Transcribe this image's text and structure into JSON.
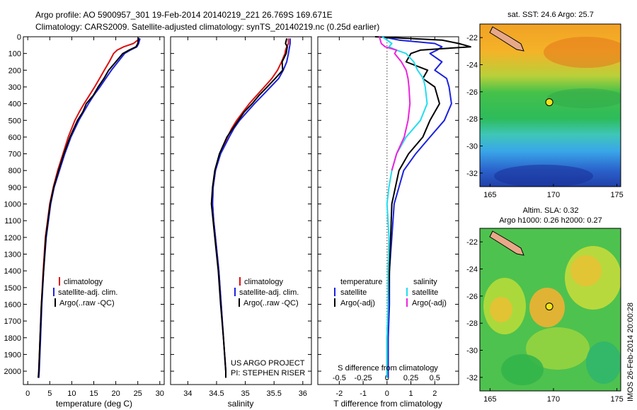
{
  "header": {
    "line1": "Argo profile: AO 5900957_301 19-Feb-2014 20140219_221 26.769S 169.671E",
    "line2": "Climatology: CARS2009. Satellite-adjusted climatology: synTS_20140219.nc (0.25d earlier)"
  },
  "colors": {
    "climatology": "#dd1111",
    "satellite": "#1c22dd",
    "argo": "#000000",
    "salinity_sat": "#22ddee",
    "salinity_argo": "#ee22dd"
  },
  "chart_data": [
    {
      "type": "line",
      "id": "temperature",
      "xlabel": "temperature (deg C)",
      "ylabel": "",
      "xlim": [
        -1,
        31
      ],
      "ylim": [
        2080,
        0
      ],
      "xticks": [
        "0",
        "5",
        "10",
        "15",
        "20",
        "25",
        "30"
      ],
      "yticks": [
        "0",
        "100",
        "200",
        "300",
        "400",
        "500",
        "600",
        "700",
        "800",
        "900",
        "1000",
        "1100",
        "1200",
        "1300",
        "1400",
        "1500",
        "1600",
        "1700",
        "1800",
        "1900",
        "2000"
      ],
      "legend": [
        "climatology",
        "satellite-adj. clim.",
        "Argo(..raw -QC)"
      ],
      "series": [
        {
          "name": "climatology",
          "color": "#dd1111",
          "depth": [
            20,
            40,
            60,
            80,
            100,
            150,
            200,
            250,
            300,
            350,
            400,
            450,
            500,
            600,
            700,
            800,
            900,
            1000,
            1200,
            1400,
            1600,
            1800,
            2000,
            2040
          ],
          "values": [
            25.0,
            24.0,
            21.8,
            20.3,
            19.5,
            18.5,
            17.4,
            16.3,
            15.2,
            14.0,
            12.8,
            11.7,
            10.7,
            9.2,
            8.0,
            6.8,
            5.8,
            5.0,
            4.0,
            3.5,
            3.1,
            2.8,
            2.5,
            2.4
          ]
        },
        {
          "name": "satellite-adj. clim.",
          "color": "#1c22dd",
          "depth": [
            10,
            40,
            60,
            80,
            100,
            150,
            200,
            250,
            300,
            350,
            400,
            450,
            500,
            600,
            700,
            800,
            900,
            1000,
            1200,
            1400,
            1600,
            1800,
            2000,
            2040
          ],
          "values": [
            25.5,
            25.2,
            24.8,
            23.3,
            22.0,
            20.5,
            19.0,
            17.7,
            16.4,
            15.0,
            13.8,
            12.7,
            11.6,
            9.8,
            8.4,
            7.2,
            6.0,
            5.2,
            4.2,
            3.6,
            3.2,
            2.9,
            2.6,
            2.5
          ]
        },
        {
          "name": "Argo(..raw -QC)",
          "color": "#000000",
          "depth": [
            5,
            40,
            60,
            80,
            100,
            150,
            200,
            250,
            300,
            350,
            400,
            450,
            500,
            600,
            700,
            800,
            900,
            1000,
            1200,
            1400,
            1600,
            1800,
            2000,
            2040
          ],
          "values": [
            25.2,
            25.0,
            24.6,
            23.0,
            21.6,
            20.0,
            18.4,
            17.3,
            16.0,
            14.9,
            13.3,
            12.5,
            11.3,
            9.6,
            8.2,
            7.0,
            5.9,
            5.1,
            4.1,
            3.6,
            3.1,
            2.8,
            2.5,
            2.4
          ]
        }
      ]
    },
    {
      "type": "line",
      "id": "salinity",
      "xlabel": "salinity",
      "xlim": [
        33.7,
        36.15
      ],
      "ylim": [
        2080,
        0
      ],
      "xticks": [
        "34",
        "34.5",
        "35",
        "35.5",
        "36"
      ],
      "legend": [
        "climatology",
        "satellite-adj. clim.",
        "Argo(..raw -QC)"
      ],
      "annotation": [
        "US ARGO PROJECT",
        "PI: STEPHEN RISER"
      ],
      "series": [
        {
          "name": "climatology",
          "color": "#dd1111",
          "depth": [
            10,
            40,
            60,
            80,
            100,
            150,
            200,
            250,
            300,
            350,
            400,
            450,
            500,
            550,
            600,
            700,
            800,
            900,
            1000,
            1100,
            1200,
            1400,
            1600,
            1800,
            2000,
            2040
          ],
          "values": [
            35.75,
            35.75,
            35.72,
            35.7,
            35.69,
            35.63,
            35.56,
            35.46,
            35.33,
            35.2,
            35.07,
            34.96,
            34.85,
            34.76,
            34.69,
            34.56,
            34.48,
            34.44,
            34.43,
            34.45,
            34.48,
            34.54,
            34.58,
            34.62,
            34.66,
            34.66
          ]
        },
        {
          "name": "satellite-adj. clim.",
          "color": "#1c22dd",
          "depth": [
            10,
            40,
            60,
            80,
            100,
            150,
            200,
            250,
            300,
            350,
            400,
            450,
            500,
            550,
            600,
            700,
            800,
            900,
            1000,
            1100,
            1200,
            1400,
            1600,
            1800,
            2000,
            2040
          ],
          "values": [
            35.78,
            35.78,
            35.77,
            35.76,
            35.75,
            35.72,
            35.66,
            35.58,
            35.44,
            35.3,
            35.16,
            35.03,
            34.9,
            34.8,
            34.72,
            34.57,
            34.48,
            34.44,
            34.43,
            34.45,
            34.48,
            34.54,
            34.58,
            34.62,
            34.66,
            34.66
          ]
        },
        {
          "name": "Argo(..raw -QC)",
          "color": "#000000",
          "depth": [
            10,
            40,
            60,
            80,
            100,
            150,
            200,
            250,
            300,
            350,
            400,
            450,
            500,
            550,
            600,
            700,
            800,
            900,
            1000,
            1100,
            1200,
            1400,
            1600,
            1800,
            2000,
            2040
          ],
          "values": [
            35.72,
            35.7,
            35.73,
            35.72,
            35.71,
            35.64,
            35.65,
            35.52,
            35.38,
            35.24,
            35.12,
            34.98,
            34.88,
            34.78,
            34.68,
            34.55,
            34.47,
            34.43,
            34.41,
            34.44,
            34.47,
            34.53,
            34.57,
            34.62,
            34.66,
            34.66
          ]
        }
      ]
    },
    {
      "type": "line",
      "id": "difference",
      "xlabel": "T difference from climatology",
      "xlabel2": "S difference from climatology",
      "xlim": [
        -2.9,
        3.0
      ],
      "ylim": [
        2080,
        0
      ],
      "xticks": [
        "-2",
        "-1",
        "0",
        "1",
        "2"
      ],
      "xticks_s": [
        "-0.5",
        "-0.25",
        "0",
        "0.25",
        "0.5"
      ],
      "legend_headers": [
        "temperature",
        "salinity"
      ],
      "legend": [
        "satellite",
        "Argo(-adj)",
        "satellite",
        "Argo(-adj)"
      ],
      "series": [
        {
          "name": "temperature satellite",
          "color": "#1c22dd",
          "depth": [
            0,
            20,
            40,
            60,
            80,
            100,
            150,
            200,
            250,
            300,
            400,
            500,
            600,
            700,
            800,
            1000,
            1200,
            1400,
            1600,
            1800,
            2000,
            2040
          ],
          "values": [
            -0.2,
            0.5,
            2.0,
            2.3,
            2.1,
            1.8,
            2.3,
            2.0,
            2.5,
            2.6,
            2.7,
            2.4,
            1.8,
            1.2,
            0.7,
            0.3,
            0.2,
            0.1,
            0.1,
            0.05,
            0.05,
            0.05
          ]
        },
        {
          "name": "temperature Argo(-adj)",
          "color": "#000000",
          "depth": [
            0,
            20,
            40,
            60,
            80,
            100,
            150,
            200,
            250,
            300,
            400,
            500,
            600,
            700,
            800,
            1000,
            1200,
            1400,
            1600,
            1800,
            2000,
            2040
          ],
          "values": [
            -0.5,
            2.3,
            3.0,
            3.5,
            1.4,
            1.0,
            0.8,
            1.7,
            1.5,
            2.0,
            2.2,
            1.8,
            1.5,
            0.9,
            0.5,
            0.2,
            0.15,
            0.1,
            0.05,
            0.0,
            0.0,
            0.0
          ]
        },
        {
          "name": "salinity satellite",
          "color": "#22ddee",
          "depth": [
            0,
            40,
            60,
            80,
            100,
            150,
            200,
            250,
            300,
            400,
            500,
            600,
            700,
            800,
            900,
            1000,
            1100,
            1200,
            1400,
            1600,
            1800,
            2000,
            2040
          ],
          "values": [
            -0.05,
            0.05,
            0.02,
            0.1,
            0.2,
            0.28,
            0.32,
            0.38,
            0.4,
            0.42,
            0.35,
            0.2,
            0.1,
            0.05,
            0.02,
            0.0,
            0.01,
            0.02,
            0.01,
            0.01,
            0.0,
            0.0,
            0.0
          ]
        },
        {
          "name": "salinity Argo(-adj)",
          "color": "#ee22dd",
          "depth": [
            0,
            40,
            60,
            80,
            100,
            150,
            200,
            250,
            300,
            400,
            500,
            600,
            700,
            800
          ],
          "values": [
            -0.08,
            -0.06,
            -0.02,
            0.1,
            0.08,
            0.15,
            0.2,
            0.22,
            0.23,
            0.24,
            0.22,
            0.18,
            0.1,
            0.05
          ]
        }
      ]
    },
    {
      "type": "heatmap",
      "id": "sst-map",
      "title": "sat. SST: 24.6 Argo: 25.7",
      "xlim": [
        164.2,
        175.3
      ],
      "ylim": [
        -33,
        -21
      ],
      "xticks": [
        "165",
        "170",
        "175"
      ],
      "yticks": [
        "-22",
        "-24",
        "-26",
        "-28",
        "-30",
        "-32"
      ],
      "marker": {
        "lon": 169.671,
        "lat": -26.769
      }
    },
    {
      "type": "heatmap",
      "id": "sla-map",
      "title1": "Altim. SLA: 0.32",
      "title2": "Argo h1000: 0.26 h2000: 0.27",
      "xlim": [
        164.2,
        175.3
      ],
      "ylim": [
        -33,
        -21
      ],
      "xticks": [
        "165",
        "170",
        "175"
      ],
      "yticks": [
        "-22",
        "-24",
        "-26",
        "-28",
        "-30",
        "-32"
      ],
      "marker": {
        "lon": 169.671,
        "lat": -26.769
      }
    }
  ],
  "footer": {
    "side_label": "IMOS 26-Feb-2014 20:00:28"
  }
}
